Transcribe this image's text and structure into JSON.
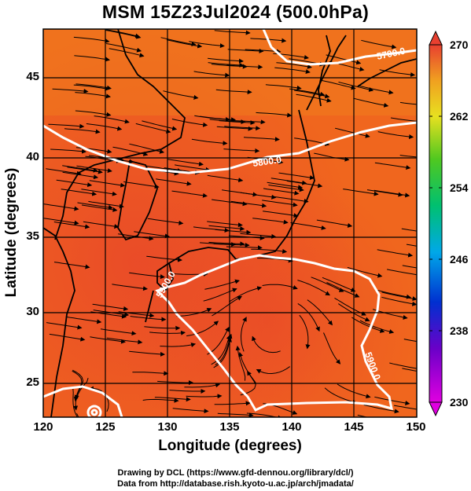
{
  "title": "MSM 15Z23Jul2024 (500.0hPa)",
  "xlabel": "Longitude (degrees)",
  "ylabel": "Latitude  (degrees)",
  "credits": {
    "line1": "Drawing by DCL (https://www.gfd-dennou.org/library/dcl/)",
    "line2": "Data from http://database.rish.kyoto-u.ac.jp/arch/jmadata/"
  },
  "x_ticks": [
    "120",
    "125",
    "130",
    "135",
    "140",
    "145",
    "150"
  ],
  "y_ticks": [
    "25",
    "30",
    "35",
    "40",
    "45"
  ],
  "colorbar": {
    "ticks": [
      "270",
      "262",
      "254",
      "246",
      "238",
      "230"
    ],
    "min": 230,
    "max": 270
  },
  "contour_labels": [
    "5700.0",
    "5800.0",
    "5900.0",
    "5900.0"
  ],
  "map": {
    "lon_range": [
      120,
      150
    ],
    "lat_range": [
      22.7,
      47.8
    ],
    "grid_lons": [
      125,
      130,
      135,
      140,
      145
    ],
    "grid_lats": [
      25,
      30,
      35,
      40,
      45
    ]
  },
  "colors": {
    "field_main": "#f0661e",
    "field_warm": "#e8452a",
    "contour": "#ffffff",
    "coast": "#000000"
  }
}
